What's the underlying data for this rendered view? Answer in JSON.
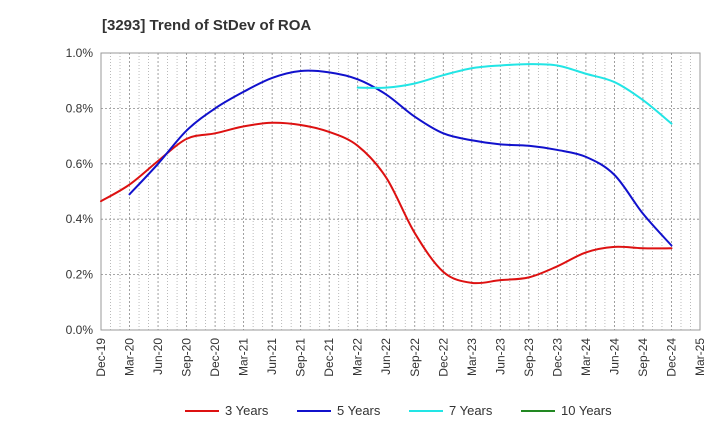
{
  "chart_data": {
    "type": "line",
    "title": "[3293]  Trend of StDev of ROA",
    "xlabel": "",
    "ylabel": "",
    "x": [
      "Dec-19",
      "Mar-20",
      "Jun-20",
      "Sep-20",
      "Dec-20",
      "Mar-21",
      "Jun-21",
      "Sep-21",
      "Dec-21",
      "Mar-22",
      "Jun-22",
      "Sep-22",
      "Dec-22",
      "Mar-23",
      "Jun-23",
      "Sep-23",
      "Dec-23",
      "Mar-24",
      "Jun-24",
      "Sep-24",
      "Dec-24",
      "Mar-25"
    ],
    "ylim": [
      0,
      1.0
    ],
    "yticks": [
      "0.0%",
      "0.2%",
      "0.4%",
      "0.6%",
      "0.8%",
      "1.0%"
    ],
    "grid": true,
    "legend_position": "bottom",
    "series": [
      {
        "name": "3 Years",
        "color": "#dd1111",
        "values": [
          0.465,
          0.525,
          0.61,
          0.69,
          0.71,
          0.735,
          0.748,
          0.74,
          0.715,
          0.665,
          0.55,
          0.35,
          0.21,
          0.17,
          0.18,
          0.19,
          0.23,
          0.28,
          0.3,
          0.295,
          0.295,
          null
        ]
      },
      {
        "name": "5 Years",
        "color": "#1111cc",
        "values": [
          null,
          0.49,
          0.6,
          0.72,
          0.8,
          0.86,
          0.91,
          0.935,
          0.93,
          0.905,
          0.85,
          0.77,
          0.71,
          0.685,
          0.67,
          0.665,
          0.65,
          0.625,
          0.56,
          0.42,
          0.305,
          null
        ]
      },
      {
        "name": "7 Years",
        "color": "#22e5e5",
        "values": [
          null,
          null,
          null,
          null,
          null,
          null,
          null,
          null,
          null,
          0.875,
          0.875,
          0.89,
          0.92,
          0.945,
          0.955,
          0.96,
          0.955,
          0.925,
          0.895,
          0.83,
          0.745,
          null
        ]
      },
      {
        "name": "10 Years",
        "color": "#228822",
        "values": [
          null,
          null,
          null,
          null,
          null,
          null,
          null,
          null,
          null,
          null,
          null,
          null,
          null,
          null,
          null,
          null,
          null,
          null,
          null,
          null,
          null,
          null
        ]
      }
    ]
  }
}
